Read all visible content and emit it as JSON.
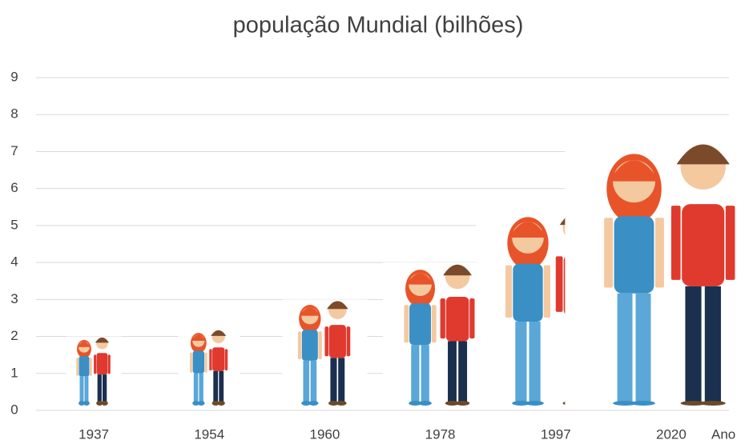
{
  "chart_data": {
    "type": "pictograph",
    "title": "população Mundial (bilhões)",
    "x_label": "Ano",
    "categories": [
      "1937",
      "1954",
      "1960",
      "1978",
      "1997",
      "2020"
    ],
    "values": [
      2,
      2.2,
      3,
      4,
      5.5,
      7.3
    ],
    "ylim": [
      0,
      9
    ],
    "yticks": [
      0,
      1,
      2,
      3,
      4,
      5,
      6,
      7,
      8,
      9
    ],
    "grid": true
  }
}
